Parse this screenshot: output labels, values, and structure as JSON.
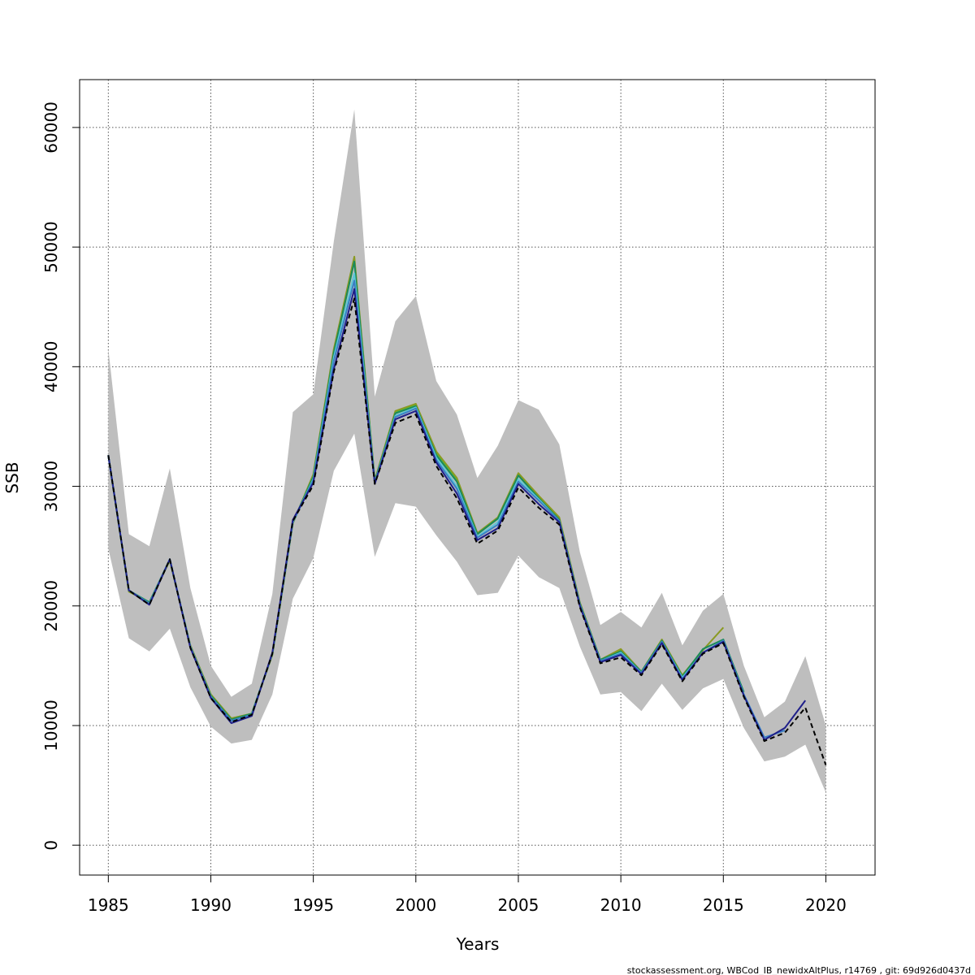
{
  "chart_data": {
    "type": "line",
    "title": "",
    "xlabel": "Years",
    "ylabel": "SSB",
    "xlim": [
      1983.6,
      2022.4
    ],
    "ylim": [
      -2500,
      64000
    ],
    "x_ticks": [
      1985,
      1990,
      1995,
      2000,
      2005,
      2010,
      2015,
      2020
    ],
    "y_ticks": [
      0,
      10000,
      20000,
      30000,
      40000,
      50000,
      60000
    ],
    "grid": true,
    "legend": "none",
    "confidence_band": {
      "color": "#bebebe",
      "x": [
        1985,
        1986,
        1987,
        1988,
        1989,
        1990,
        1991,
        1992,
        1993,
        1994,
        1995,
        1996,
        1997,
        1998,
        1999,
        2000,
        2001,
        2002,
        2003,
        2004,
        2005,
        2006,
        2007,
        2008,
        2009,
        2010,
        2011,
        2012,
        2013,
        2014,
        2015,
        2016,
        2017,
        2018,
        2019,
        2020
      ],
      "upper": [
        41500,
        26000,
        25000,
        31500,
        21500,
        15000,
        12400,
        13500,
        21000,
        36200,
        37700,
        50500,
        61500,
        37500,
        43800,
        45900,
        38800,
        36000,
        30700,
        33400,
        37200,
        36400,
        33500,
        24500,
        18400,
        19500,
        18200,
        21100,
        16700,
        19600,
        21000,
        15000,
        10700,
        12000,
        15800,
        10000
      ],
      "lower": [
        24800,
        17300,
        16200,
        18100,
        13200,
        9900,
        8500,
        8800,
        12600,
        20600,
        24000,
        31300,
        34400,
        24100,
        28600,
        28300,
        25900,
        23700,
        20900,
        21100,
        24200,
        22400,
        21500,
        16600,
        12600,
        12800,
        11200,
        13500,
        11300,
        13100,
        13900,
        9800,
        7000,
        7400,
        8400,
        4400
      ]
    },
    "series": [
      {
        "color": "#000000",
        "dashed": true,
        "x": [
          1985,
          1986,
          1987,
          1988,
          1989,
          1990,
          1991,
          1992,
          1993,
          1994,
          1995,
          1996,
          1997,
          1998,
          1999,
          2000,
          2001,
          2002,
          2003,
          2004,
          2005,
          2006,
          2007,
          2008,
          2009,
          2010,
          2011,
          2012,
          2013,
          2014,
          2015,
          2016,
          2017,
          2018,
          2019,
          2020
        ],
        "values": [
          32600,
          21300,
          20100,
          23900,
          16500,
          12300,
          10300,
          10900,
          16000,
          27100,
          30100,
          39600,
          45700,
          30200,
          35300,
          36000,
          31700,
          29000,
          25200,
          26300,
          29900,
          28200,
          26800,
          19900,
          15200,
          15700,
          14200,
          16800,
          13700,
          16000,
          16900,
          12400,
          8700,
          9400,
          11500,
          6700
        ]
      },
      {
        "color": "#1f1f8a",
        "dashed": false,
        "x": [
          1985,
          1986,
          1987,
          1988,
          1989,
          1990,
          1991,
          1992,
          1993,
          1994,
          1995,
          1996,
          1997,
          1998,
          1999,
          2000,
          2001,
          2002,
          2003,
          2004,
          2005,
          2006,
          2007,
          2008,
          2009,
          2010,
          2011,
          2012,
          2013,
          2014,
          2015,
          2016,
          2017,
          2018,
          2019
        ],
        "values": [
          32600,
          21300,
          20100,
          23900,
          16500,
          12300,
          10200,
          10800,
          16100,
          27200,
          30300,
          39800,
          46500,
          30200,
          35600,
          36300,
          32000,
          29400,
          25500,
          26500,
          30200,
          28500,
          27000,
          20000,
          15300,
          15900,
          14300,
          16900,
          13800,
          16100,
          17000,
          12500,
          8800,
          9800,
          12100
        ]
      },
      {
        "color": "#3a7fc4",
        "dashed": false,
        "x": [
          1985,
          1986,
          1987,
          1988,
          1989,
          1990,
          1991,
          1992,
          1993,
          1994,
          1995,
          1996,
          1997,
          1998,
          1999,
          2000,
          2001,
          2002,
          2003,
          2004,
          2005,
          2006,
          2007,
          2008,
          2009,
          2010,
          2011,
          2012,
          2013,
          2014,
          2015,
          2016,
          2017,
          2018
        ],
        "values": [
          32600,
          21300,
          20200,
          23900,
          16600,
          12400,
          10400,
          10900,
          16000,
          27000,
          30500,
          40500,
          47200,
          30300,
          35800,
          36500,
          32200,
          29800,
          25700,
          26800,
          30400,
          28800,
          27100,
          20100,
          15400,
          16000,
          14400,
          17000,
          13900,
          16100,
          17100,
          12600,
          9000,
          9600
        ]
      },
      {
        "color": "#5ec7d8",
        "dashed": false,
        "x": [
          1985,
          1986,
          1987,
          1988,
          1989,
          1990,
          1991,
          1992,
          1993,
          1994,
          1995,
          1996,
          1997,
          1998,
          1999,
          2000,
          2001,
          2002,
          2003,
          2004,
          2005,
          2006,
          2007,
          2008,
          2009,
          2010,
          2011,
          2012,
          2013,
          2014,
          2015,
          2016,
          2017
        ],
        "values": [
          32600,
          21300,
          20200,
          23900,
          16600,
          12400,
          10400,
          10900,
          16000,
          27000,
          30600,
          40800,
          47800,
          30300,
          35900,
          36600,
          32400,
          30000,
          25800,
          27000,
          30600,
          28900,
          27100,
          20100,
          15400,
          16100,
          14400,
          17000,
          14000,
          16100,
          17100,
          12600,
          9000
        ]
      },
      {
        "color": "#1a8a5a",
        "dashed": false,
        "x": [
          1985,
          1986,
          1987,
          1988,
          1989,
          1990,
          1991,
          1992,
          1993,
          1994,
          1995,
          1996,
          1997,
          1998,
          1999,
          2000,
          2001,
          2002,
          2003,
          2004,
          2005,
          2006,
          2007,
          2008,
          2009,
          2010,
          2011,
          2012,
          2013,
          2014,
          2015,
          2016
        ],
        "values": [
          32600,
          21300,
          20300,
          23900,
          16600,
          12500,
          10500,
          11000,
          16000,
          27000,
          30800,
          41200,
          48800,
          30400,
          36100,
          36700,
          32600,
          30400,
          26000,
          27300,
          30900,
          29000,
          27200,
          20200,
          15500,
          16200,
          14500,
          17100,
          14100,
          16400,
          17200,
          12800
        ]
      },
      {
        "color": "#8a9a22",
        "dashed": false,
        "x": [
          1985,
          1986,
          1987,
          1988,
          1989,
          1990,
          1991,
          1992,
          1993,
          1994,
          1995,
          1996,
          1997,
          1998,
          1999,
          2000,
          2001,
          2002,
          2003,
          2004,
          2005,
          2006,
          2007,
          2008,
          2009,
          2010,
          2011,
          2012,
          2013,
          2014,
          2015
        ],
        "values": [
          32600,
          21200,
          20300,
          23800,
          16700,
          12600,
          10600,
          11000,
          15900,
          26900,
          31000,
          41500,
          49200,
          30500,
          36300,
          36900,
          32900,
          30700,
          26100,
          27400,
          31100,
          29200,
          27400,
          20300,
          15500,
          16400,
          14500,
          17200,
          14200,
          16300,
          18200
        ]
      },
      {
        "color": "#4fb83a",
        "dashed": false,
        "x": [
          1985,
          1986,
          1987,
          1988,
          1989,
          1990,
          1991,
          1992,
          1993,
          1994,
          1995,
          1996,
          1997,
          1998,
          1999,
          2000,
          2001,
          2002,
          2003,
          2004,
          2005,
          2006,
          2007,
          2008,
          2009,
          2010,
          2011,
          2012,
          2013,
          2014
        ],
        "values": [
          32600,
          21200,
          20300,
          23800,
          16700,
          12600,
          10600,
          11000,
          15900,
          26900,
          30900,
          41300,
          49000,
          30500,
          36200,
          36800,
          32800,
          30600,
          26000,
          27300,
          31000,
          29100,
          27300,
          20200,
          15500,
          16300,
          14500,
          17100,
          14200,
          16300
        ]
      }
    ],
    "footer": "stockassessment.org, WBCod_IB_newidxAltPlus, r14769 , git: 69d926d0437d"
  }
}
